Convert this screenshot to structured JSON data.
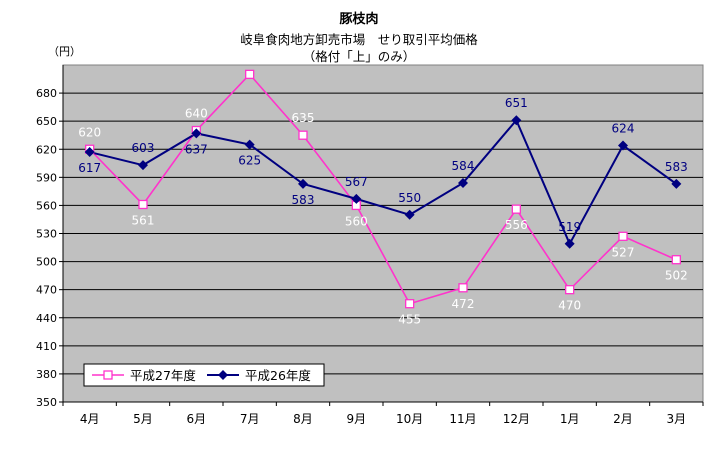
{
  "chart_data": {
    "type": "line",
    "title": "豚枝肉",
    "subtitle": "岐阜食肉地方卸売市場　せり取引平均価格",
    "subtitle2": "（格付「上」のみ）",
    "ylabel": "（円）",
    "xlabel": "",
    "categories": [
      "4月",
      "5月",
      "6月",
      "7月",
      "8月",
      "9月",
      "10月",
      "11月",
      "12月",
      "1月",
      "2月",
      "3月"
    ],
    "ylim": [
      350,
      710
    ],
    "yticks": [
      350,
      380,
      410,
      440,
      470,
      500,
      530,
      560,
      590,
      620,
      650,
      680
    ],
    "grid": true,
    "legend_position": "bottom-left",
    "series": [
      {
        "name": "平成27年度",
        "values": [
          620,
          561,
          640,
          700,
          635,
          560,
          455,
          472,
          556,
          470,
          527,
          502
        ],
        "color": "#ff33cc",
        "label_color": "#ffffff",
        "marker": "open-square"
      },
      {
        "name": "平成26年度",
        "values": [
          617,
          603,
          637,
          625,
          583,
          567,
          550,
          584,
          651,
          519,
          624,
          583
        ],
        "color": "#000080",
        "label_color": "#000080",
        "marker": "filled-diamond"
      }
    ],
    "plot_background": "#c0c0c0"
  }
}
